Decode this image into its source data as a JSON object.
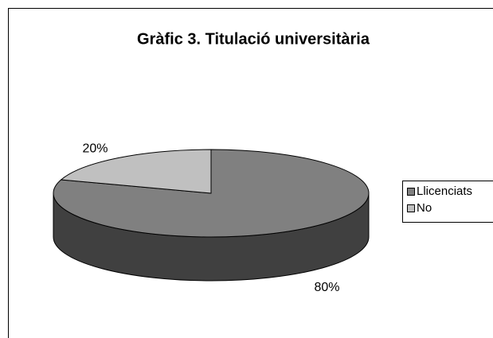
{
  "chart_data": {
    "type": "pie",
    "title": "Gràfic 3. Titulació universitària",
    "categories": [
      "Llicenciats",
      "No"
    ],
    "values": [
      80,
      20
    ],
    "value_labels": [
      "80%",
      "20%"
    ],
    "colors": [
      "#808080",
      "#c0c0c0"
    ],
    "side_colors": [
      "#404040",
      "#606060"
    ],
    "legend": "right"
  }
}
